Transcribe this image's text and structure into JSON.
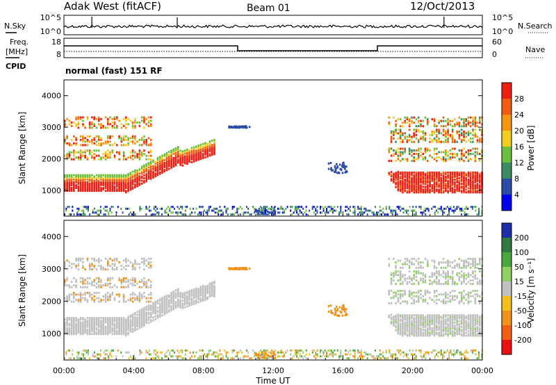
{
  "header": {
    "station": "Adak West (fitACF)",
    "beam": "Beam 01",
    "date": "12/Oct/2013"
  },
  "noise_panel": {
    "left_label": "N.Sky",
    "right_label": "N.Search",
    "left_ticks": [
      "10^5",
      "10^0"
    ],
    "right_ticks": [
      "10^5",
      "10^0"
    ]
  },
  "freq_panel": {
    "left_label_1": "Freq.",
    "left_label_2": "[MHz]",
    "left_ticks": [
      "18",
      "8"
    ],
    "right_label": "Nave",
    "right_ticks": [
      "60",
      "0"
    ]
  },
  "cpid_panel": {
    "label": "CPID",
    "mode": "normal (fast) 151 RF"
  },
  "colors": {
    "power": [
      "#0000ee",
      "#2a4ca8",
      "#3a8c62",
      "#6cbf3c",
      "#f4cc20",
      "#f79410",
      "#f25c10",
      "#ee1e10"
    ],
    "velocity": [
      "#1e2ea8",
      "#2f7a3c",
      "#48a83c",
      "#90d060",
      "#c0c0c0",
      "#f2c018",
      "#f09218",
      "#f26010",
      "#ee1010"
    ]
  },
  "chart_data": [
    {
      "type": "heatmap",
      "name": "power",
      "xlabel": "",
      "ylabel": "Slant Range [km]",
      "ylim": [
        180,
        4500
      ],
      "xlim": [
        0,
        24
      ],
      "yticks": [
        "1000",
        "2000",
        "3000",
        "4000"
      ],
      "colorbar": {
        "label": "Power [dB]",
        "ticks": [
          "4",
          "8",
          "12",
          "16",
          "20",
          "24",
          "28"
        ]
      }
    },
    {
      "type": "heatmap",
      "name": "velocity",
      "xlabel": "Time UT",
      "ylabel": "Slant Range [km]",
      "ylim": [
        180,
        4500
      ],
      "xlim": [
        0,
        24
      ],
      "xticks": [
        "00:00",
        "04:00",
        "08:00",
        "12:00",
        "16:00",
        "20:00",
        "00:00"
      ],
      "yticks": [
        "1000",
        "2000",
        "3000",
        "4000"
      ],
      "colorbar": {
        "label": "Velocity [m s⁻¹]",
        "ticks": [
          "200",
          "100",
          "50",
          "15",
          "-15",
          "-50",
          "-100",
          "-200"
        ]
      }
    }
  ]
}
